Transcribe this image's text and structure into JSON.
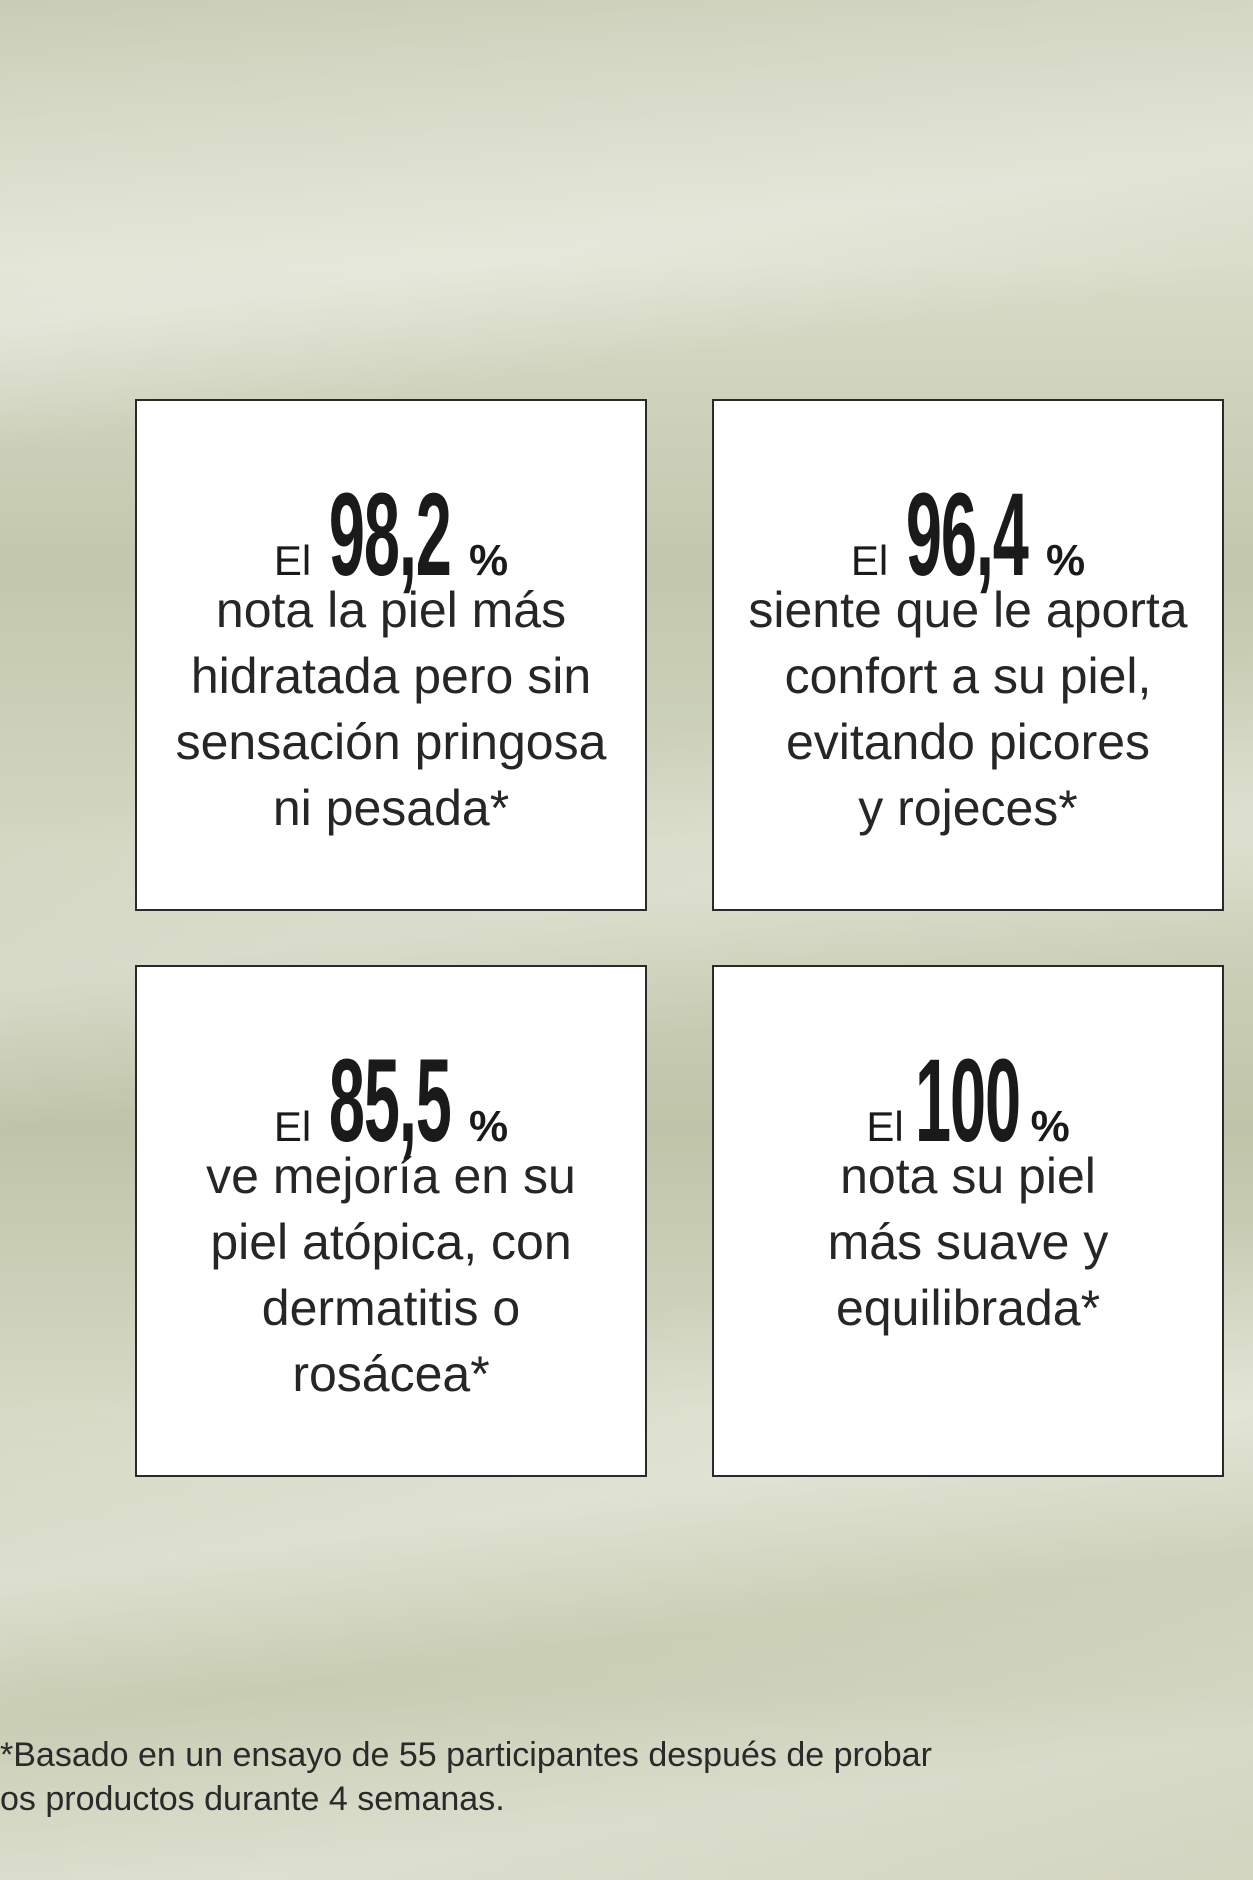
{
  "cards": [
    {
      "prefix": "El",
      "number": "98,2",
      "unit": "%",
      "lines": [
        "nota la piel más",
        "hidratada pero sin",
        "sensación pringosa",
        "ni pesada*"
      ]
    },
    {
      "prefix": "El",
      "number": "96,4",
      "unit": "%",
      "lines": [
        "siente que le aporta",
        "confort a su piel,",
        "evitando picores",
        "y rojeces*"
      ]
    },
    {
      "prefix": "El",
      "number": "85,5",
      "unit": "%",
      "lines": [
        "ve mejoría en su",
        "piel atópica, con",
        "dermatitis o",
        "rosácea*"
      ]
    },
    {
      "prefix": "El",
      "number": "100",
      "unit": "%",
      "lines": [
        "nota su piel",
        "más suave y",
        "equilibrada*"
      ]
    }
  ],
  "footnote": [
    "*Basado en un ensayo de 55 participantes después de probar",
    "os productos durante 4 semanas."
  ]
}
